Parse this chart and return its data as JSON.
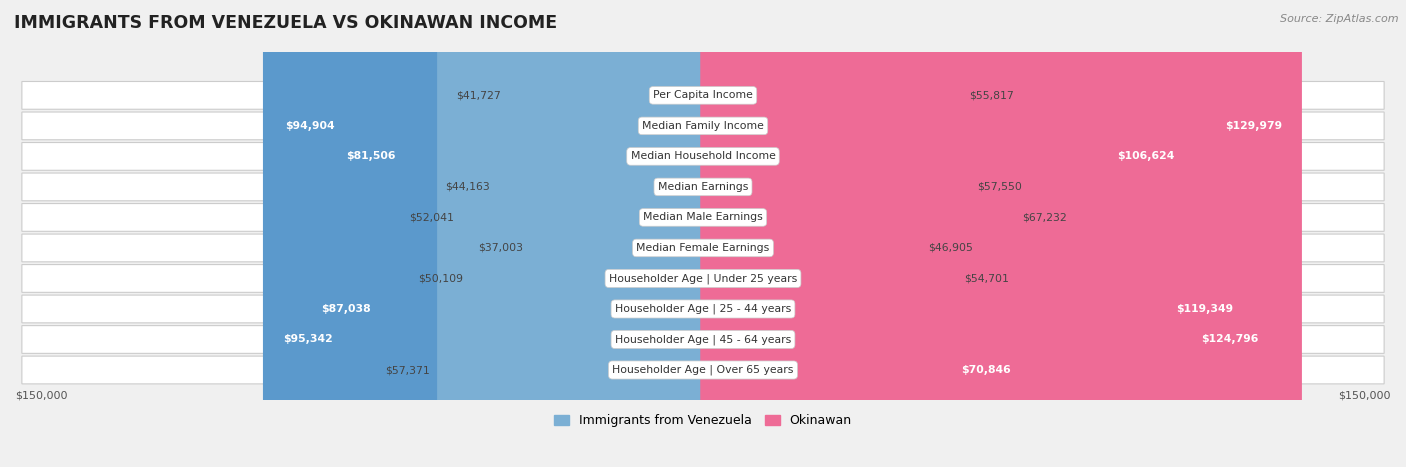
{
  "title": "IMMIGRANTS FROM VENEZUELA VS OKINAWAN INCOME",
  "source": "Source: ZipAtlas.com",
  "categories": [
    "Per Capita Income",
    "Median Family Income",
    "Median Household Income",
    "Median Earnings",
    "Median Male Earnings",
    "Median Female Earnings",
    "Householder Age | Under 25 years",
    "Householder Age | 25 - 44 years",
    "Householder Age | 45 - 64 years",
    "Householder Age | Over 65 years"
  ],
  "venezuela_values": [
    41727,
    94904,
    81506,
    44163,
    52041,
    37003,
    50109,
    87038,
    95342,
    57371
  ],
  "okinawan_values": [
    55817,
    129979,
    106624,
    57550,
    67232,
    46905,
    54701,
    119349,
    124796,
    70846
  ],
  "venezuela_labels": [
    "$41,727",
    "$94,904",
    "$81,506",
    "$44,163",
    "$52,041",
    "$37,003",
    "$50,109",
    "$87,038",
    "$95,342",
    "$57,371"
  ],
  "okinawan_labels": [
    "$55,817",
    "$129,979",
    "$106,624",
    "$57,550",
    "$67,232",
    "$46,905",
    "$54,701",
    "$119,349",
    "$124,796",
    "$70,846"
  ],
  "venezuela_color": "#7bafd4",
  "venezuela_color_dark": "#5b99cc",
  "okinawan_color": "#f2a0bc",
  "okinawan_color_dark": "#ee6b96",
  "max_value": 150000,
  "legend_venezuela": "Immigrants from Venezuela",
  "legend_okinawan": "Okinawan",
  "background_color": "#f0f0f0",
  "row_bg_color": "#ffffff",
  "ven_inside_threshold": 70000,
  "oki_inside_threshold": 70000
}
